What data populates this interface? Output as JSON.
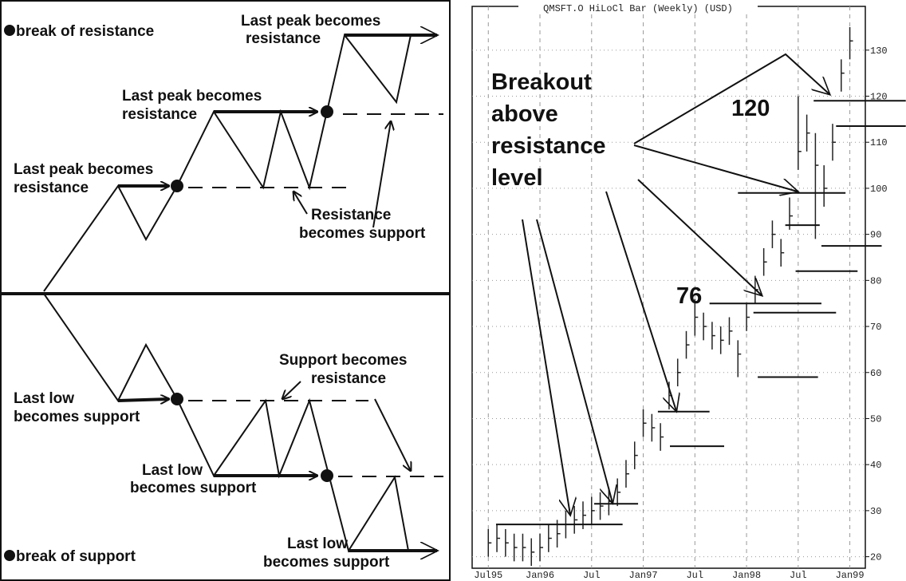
{
  "diagram": {
    "break_resistance": "break of resistance",
    "break_support": "break of support",
    "labels": [
      {
        "lines": [
          "Last peak becomes",
          "resistance"
        ]
      },
      {
        "lines": [
          "Last peak becomes",
          "resistance"
        ]
      },
      {
        "lines": [
          "Last peak becomes",
          "resistance"
        ]
      },
      {
        "lines": [
          "Resistance",
          "becomes support"
        ]
      },
      {
        "lines": [
          "Support becomes",
          "resistance"
        ]
      },
      {
        "lines": [
          "Last low",
          "becomes support"
        ]
      },
      {
        "lines": [
          "Last low",
          "becomes support"
        ]
      },
      {
        "lines": [
          "Last low",
          "becomes support"
        ]
      }
    ]
  },
  "chart_data": {
    "type": "hiloclose",
    "title": "QMSFT.O HiLoCl Bar (Weekly) (USD)",
    "annotation": [
      "Breakout",
      "above",
      "resistance",
      "level"
    ],
    "level_labels": [
      {
        "value": 120,
        "label": "120"
      },
      {
        "value": 76,
        "label": "76"
      }
    ],
    "x": [
      0,
      1,
      2,
      3,
      4,
      5,
      6,
      7,
      8,
      9,
      10,
      11,
      12,
      13,
      14,
      15,
      16,
      17,
      18,
      19,
      20,
      21,
      22,
      23,
      24,
      25,
      26,
      27,
      28,
      29,
      30,
      31,
      32,
      33,
      34,
      35,
      36,
      37,
      38,
      39,
      40,
      41,
      42
    ],
    "values": [
      23,
      24,
      23,
      22,
      22,
      21,
      22,
      24,
      25,
      27,
      28,
      29,
      30,
      31,
      32,
      34,
      38,
      42,
      49,
      48,
      46,
      55,
      60,
      66,
      72,
      70,
      68,
      67,
      69,
      64,
      72,
      78,
      84,
      90,
      86,
      94,
      108,
      112,
      105,
      100,
      110,
      125,
      132
    ],
    "highs": [
      26,
      27,
      26,
      25,
      25,
      24,
      25,
      27,
      28,
      30,
      31,
      32,
      33,
      34,
      35,
      37,
      41,
      45,
      52,
      51,
      49,
      58,
      63,
      69,
      76,
      73,
      71,
      70,
      72,
      67,
      75,
      81,
      87,
      93,
      89,
      98,
      120,
      116,
      112,
      105,
      114,
      128,
      135
    ],
    "lows": [
      20,
      21,
      20,
      19,
      19,
      18,
      19,
      21,
      22,
      24,
      25,
      26,
      27,
      28,
      29,
      31,
      35,
      39,
      46,
      45,
      43,
      52,
      57,
      63,
      68,
      67,
      65,
      64,
      66,
      59,
      69,
      75,
      81,
      87,
      83,
      91,
      104,
      108,
      89,
      96,
      106,
      121,
      128
    ],
    "color": "#222222",
    "levels": [
      {
        "value": 27,
        "x": [
          0.9,
          15.6
        ]
      },
      {
        "value": 31.5,
        "x": [
          12.3,
          17.4
        ]
      },
      {
        "value": 51.5,
        "x": [
          19.7,
          25.7
        ]
      },
      {
        "value": 44,
        "x": [
          21.1,
          27.4
        ]
      },
      {
        "value": 75,
        "x": [
          25.7,
          38.7
        ]
      },
      {
        "value": 73,
        "x": [
          30.8,
          40.4
        ]
      },
      {
        "value": 59,
        "x": [
          31.3,
          38.3
        ]
      },
      {
        "value": 99,
        "x": [
          29,
          41.5
        ]
      },
      {
        "value": 92,
        "x": [
          34.5,
          38.5
        ]
      },
      {
        "value": 82,
        "x": [
          35.7,
          42.9
        ]
      },
      {
        "value": 87.5,
        "x": [
          38.7,
          45.7
        ]
      },
      {
        "value": 119,
        "x": [
          37.8,
          48.5
        ]
      },
      {
        "value": 113.5,
        "x": [
          40.4,
          48.5
        ]
      }
    ],
    "xlim": [
      -1.6,
      43.8
    ],
    "xticks": [
      {
        "value": 0,
        "label": "Jul95"
      },
      {
        "value": 6,
        "label": "Jan96"
      },
      {
        "value": 12,
        "label": "Jul"
      },
      {
        "value": 18,
        "label": "Jan97"
      },
      {
        "value": 24,
        "label": "Jul"
      },
      {
        "value": 30,
        "label": "Jan98"
      },
      {
        "value": 36,
        "label": "Jul"
      },
      {
        "value": 42,
        "label": "Jan99"
      }
    ],
    "ylim": [
      17.5,
      139.5
    ],
    "yticks": [
      20,
      30,
      40,
      50,
      60,
      70,
      80,
      90,
      100,
      110,
      120,
      130
    ],
    "grid": true
  }
}
